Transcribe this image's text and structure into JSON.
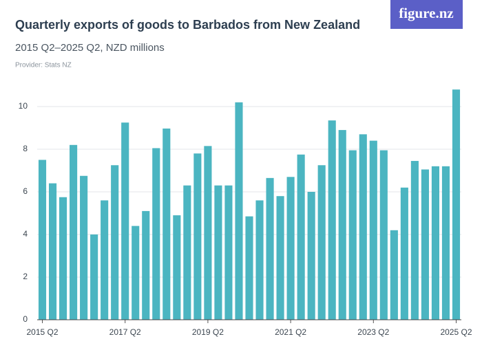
{
  "logo": "figure.nz",
  "chart_data": {
    "type": "bar",
    "title": "Quarterly exports of goods to Barbados from New Zealand",
    "subtitle": "2015 Q2–2025 Q2, NZD millions",
    "provider": "Provider: Stats NZ",
    "categories": [
      "2015 Q2",
      null,
      null,
      null,
      null,
      null,
      null,
      null,
      "2017 Q2",
      null,
      null,
      null,
      null,
      null,
      null,
      null,
      "2019 Q2",
      null,
      null,
      null,
      null,
      null,
      null,
      null,
      "2021 Q2",
      null,
      null,
      null,
      null,
      null,
      null,
      null,
      "2023 Q2",
      null,
      null,
      null,
      null,
      null,
      null,
      null,
      "2025 Q2"
    ],
    "values": [
      7.5,
      6.4,
      5.75,
      8.2,
      6.75,
      4.0,
      5.6,
      7.25,
      9.25,
      4.4,
      5.1,
      8.05,
      8.97,
      4.9,
      6.3,
      7.8,
      8.15,
      6.3,
      6.3,
      10.2,
      4.85,
      5.6,
      6.65,
      5.8,
      6.7,
      7.75,
      6.0,
      7.25,
      9.35,
      8.9,
      7.95,
      8.7,
      8.4,
      7.95,
      4.2,
      6.2,
      7.45,
      7.05,
      7.2,
      7.2,
      10.8
    ],
    "color": "#4bb5c1",
    "ylim": [
      0,
      11
    ],
    "yticks": [
      0,
      2,
      4,
      6,
      8,
      10
    ],
    "grid": true
  }
}
